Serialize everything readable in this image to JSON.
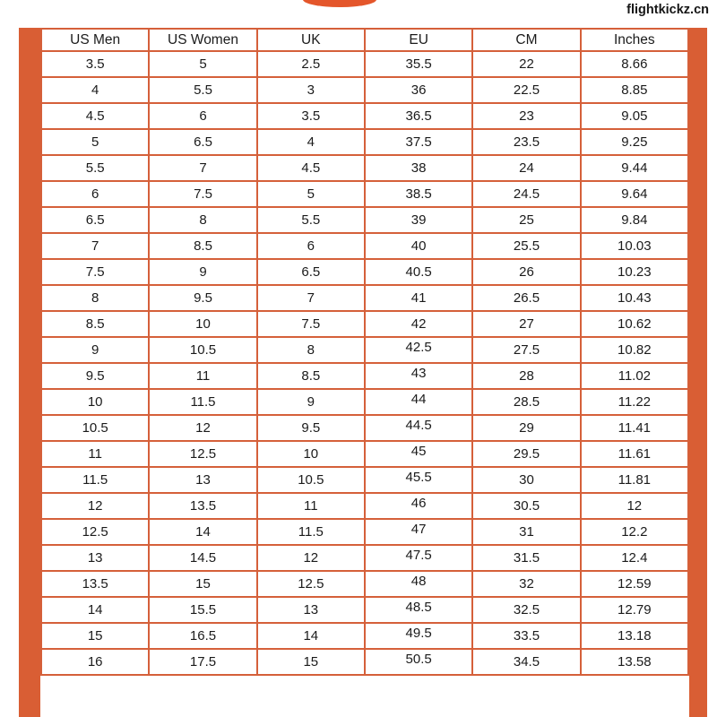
{
  "page": {
    "watermark_text": "flightkickz.cn",
    "background_color": "#ffffff"
  },
  "logo": {
    "icon": "cropped-orange-circle",
    "color": "#e4562b"
  },
  "chart_data": {
    "type": "table",
    "columns": [
      "US Men",
      "US Women",
      "UK",
      "EU",
      "CM",
      "Inches"
    ],
    "rows": [
      [
        "3.5",
        "5",
        "2.5",
        "35.5",
        "22",
        "8.66"
      ],
      [
        "4",
        "5.5",
        "3",
        "36",
        "22.5",
        "8.85"
      ],
      [
        "4.5",
        "6",
        "3.5",
        "36.5",
        "23",
        "9.05"
      ],
      [
        "5",
        "6.5",
        "4",
        "37.5",
        "23.5",
        "9.25"
      ],
      [
        "5.5",
        "7",
        "4.5",
        "38",
        "24",
        "9.44"
      ],
      [
        "6",
        "7.5",
        "5",
        "38.5",
        "24.5",
        "9.64"
      ],
      [
        "6.5",
        "8",
        "5.5",
        "39",
        "25",
        "9.84"
      ],
      [
        "7",
        "8.5",
        "6",
        "40",
        "25.5",
        "10.03"
      ],
      [
        "7.5",
        "9",
        "6.5",
        "40.5",
        "26",
        "10.23"
      ],
      [
        "8",
        "9.5",
        "7",
        "41",
        "26.5",
        "10.43"
      ],
      [
        "8.5",
        "10",
        "7.5",
        "42",
        "27",
        "10.62"
      ],
      [
        "9",
        "10.5",
        "8",
        "42.5",
        "27.5",
        "10.82"
      ],
      [
        "9.5",
        "11",
        "8.5",
        "43",
        "28",
        "11.02"
      ],
      [
        "10",
        "11.5",
        "9",
        "44",
        "28.5",
        "11.22"
      ],
      [
        "10.5",
        "12",
        "9.5",
        "44.5",
        "29",
        "11.41"
      ],
      [
        "11",
        "12.5",
        "10",
        "45",
        "29.5",
        "11.61"
      ],
      [
        "11.5",
        "13",
        "10.5",
        "45.5",
        "30",
        "11.81"
      ],
      [
        "12",
        "13.5",
        "11",
        "46",
        "30.5",
        "12"
      ],
      [
        "12.5",
        "14",
        "11.5",
        "47",
        "31",
        "12.2"
      ],
      [
        "13",
        "14.5",
        "12",
        "47.5",
        "31.5",
        "12.4"
      ],
      [
        "13.5",
        "15",
        "12.5",
        "48",
        "32",
        "12.59"
      ],
      [
        "14",
        "15.5",
        "13",
        "48.5",
        "32.5",
        "12.79"
      ],
      [
        "15",
        "16.5",
        "14",
        "49.5",
        "33.5",
        "13.18"
      ],
      [
        "16",
        "17.5",
        "15",
        "50.5",
        "34.5",
        "13.58"
      ]
    ],
    "layout_hints": {
      "legend": "none",
      "grid": "orange cell borders",
      "line_color": "#d5603a",
      "side_bar_color": "#d95e34",
      "text_color": "#1b1b1b",
      "eu_column_index": 3,
      "eu_values_top_aligned_from_row": 11,
      "last_row_clipped_at_bottom": true
    }
  }
}
